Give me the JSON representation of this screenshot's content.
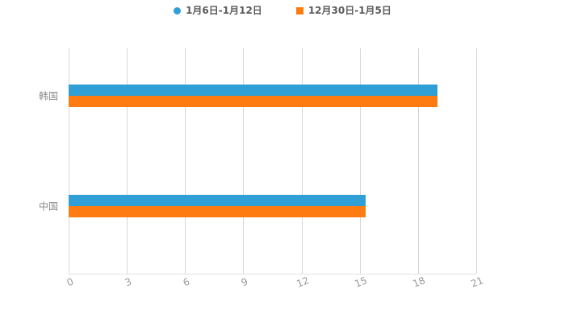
{
  "chart_data": {
    "type": "bar",
    "orientation": "horizontal",
    "title": "",
    "xlabel": "",
    "ylabel": "",
    "categories": [
      "韩国",
      "中国"
    ],
    "series": [
      {
        "name": "1月6日-1月12日",
        "color": "#2f9fd6",
        "marker": "circle",
        "values": [
          19,
          15.3
        ]
      },
      {
        "name": "12月30日-1月5日",
        "color": "#fd7b11",
        "marker": "square",
        "values": [
          19,
          15.3
        ]
      }
    ],
    "xlim": [
      0,
      21
    ],
    "xticks": [
      0,
      3,
      6,
      9,
      12,
      15,
      18,
      21
    ],
    "grid": true,
    "legend_position": "top"
  }
}
